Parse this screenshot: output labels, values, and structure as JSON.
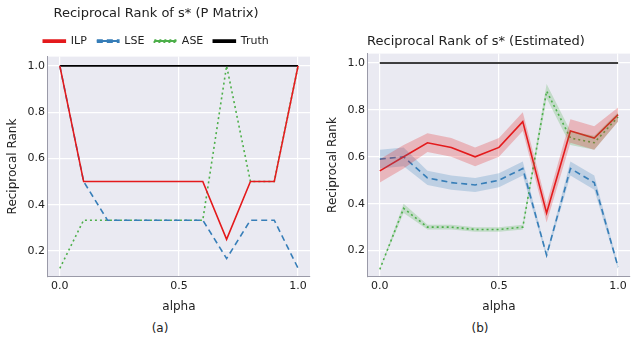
{
  "chart_data": [
    {
      "type": "line",
      "title": "Reciprocal Rank of s* (P Matrix)",
      "caption": "(a)",
      "x_label": "alpha",
      "y_label": "Reciprocal Rank",
      "x": [
        0,
        0.1,
        0.2,
        0.3,
        0.4,
        0.5,
        0.6,
        0.7,
        0.8,
        0.9,
        1.0
      ],
      "series": [
        {
          "name": "ILP",
          "color": "#e41a1c",
          "line_style": "solid",
          "values": [
            1.0,
            0.5,
            0.5,
            0.5,
            0.5,
            0.5,
            0.5,
            0.25,
            0.5,
            0.5,
            1.0
          ]
        },
        {
          "name": "LSE",
          "color": "#377eb8",
          "line_style": "dashed",
          "values": [
            1.0,
            0.5,
            0.333,
            0.333,
            0.333,
            0.333,
            0.333,
            0.167,
            0.333,
            0.333,
            0.125
          ]
        },
        {
          "name": "ASE",
          "color": "#4daf4a",
          "line_style": "dotted",
          "values": [
            0.125,
            0.333,
            0.333,
            0.333,
            0.333,
            0.333,
            0.333,
            1.0,
            0.5,
            0.5,
            1.0
          ]
        },
        {
          "name": "Truth",
          "color": "#000000",
          "line_style": "solid",
          "values": [
            1.0,
            1.0,
            1.0,
            1.0,
            1.0,
            1.0,
            1.0,
            1.0,
            1.0,
            1.0,
            1.0
          ]
        }
      ],
      "xlim": [
        -0.05,
        1.05
      ],
      "xticks": [
        {
          "value": 0,
          "label": "0.0"
        },
        0.5,
        {
          "value": 1.0,
          "label": "1.0"
        }
      ],
      "ylim": [
        0.09,
        1.04
      ],
      "yticks": [
        0.2,
        0.4,
        0.6,
        0.8,
        {
          "value": 1.0,
          "label": "1.0"
        }
      ],
      "grid": true,
      "legend": "top"
    },
    {
      "type": "line",
      "title": "Reciprocal Rank of s* (Estimated)",
      "caption": "(b)",
      "x_label": "alpha",
      "y_label": "Reciprocal Rank",
      "x": [
        0,
        0.1,
        0.2,
        0.3,
        0.4,
        0.5,
        0.6,
        0.7,
        0.8,
        0.9,
        1.0
      ],
      "series": [
        {
          "name": "ILP",
          "color": "#e41a1c",
          "line_style": "solid",
          "values": [
            0.54,
            0.6,
            0.66,
            0.64,
            0.6,
            0.64,
            0.75,
            0.36,
            0.71,
            0.68,
            0.78
          ],
          "lower": [
            0.49,
            0.55,
            0.62,
            0.6,
            0.56,
            0.6,
            0.71,
            0.32,
            0.66,
            0.63,
            0.75
          ],
          "upper": [
            0.59,
            0.65,
            0.7,
            0.68,
            0.64,
            0.68,
            0.79,
            0.4,
            0.76,
            0.73,
            0.81
          ]
        },
        {
          "name": "LSE",
          "color": "#377eb8",
          "line_style": "dashed",
          "values": [
            0.59,
            0.6,
            0.51,
            0.49,
            0.48,
            0.5,
            0.55,
            0.18,
            0.55,
            0.49,
            0.13
          ],
          "lower": [
            0.55,
            0.56,
            0.48,
            0.46,
            0.45,
            0.47,
            0.52,
            0.17,
            0.52,
            0.46,
            0.12
          ],
          "upper": [
            0.63,
            0.64,
            0.54,
            0.52,
            0.51,
            0.53,
            0.58,
            0.19,
            0.58,
            0.52,
            0.14
          ]
        },
        {
          "name": "ASE",
          "color": "#4daf4a",
          "line_style": "dotted",
          "values": [
            0.12,
            0.38,
            0.3,
            0.3,
            0.29,
            0.29,
            0.3,
            0.88,
            0.68,
            0.66,
            0.77
          ],
          "lower": [
            0.12,
            0.36,
            0.29,
            0.29,
            0.28,
            0.28,
            0.29,
            0.85,
            0.65,
            0.63,
            0.75
          ],
          "upper": [
            0.12,
            0.4,
            0.31,
            0.31,
            0.3,
            0.3,
            0.31,
            0.91,
            0.71,
            0.69,
            0.79
          ]
        },
        {
          "name": "Truth",
          "color": "#000000",
          "line_style": "solid",
          "values": [
            1.0,
            1.0,
            1.0,
            1.0,
            1.0,
            1.0,
            1.0,
            1.0,
            1.0,
            1.0,
            1.0
          ]
        }
      ],
      "xlim": [
        -0.05,
        1.05
      ],
      "xticks": [
        {
          "value": 0,
          "label": "0.0"
        },
        0.5,
        {
          "value": 1.0,
          "label": "1.0"
        }
      ],
      "ylim": [
        0.09,
        1.04
      ],
      "yticks": [
        0.2,
        0.4,
        0.6,
        0.8,
        {
          "value": 1.0,
          "label": "1.0"
        }
      ],
      "grid": true
    }
  ]
}
